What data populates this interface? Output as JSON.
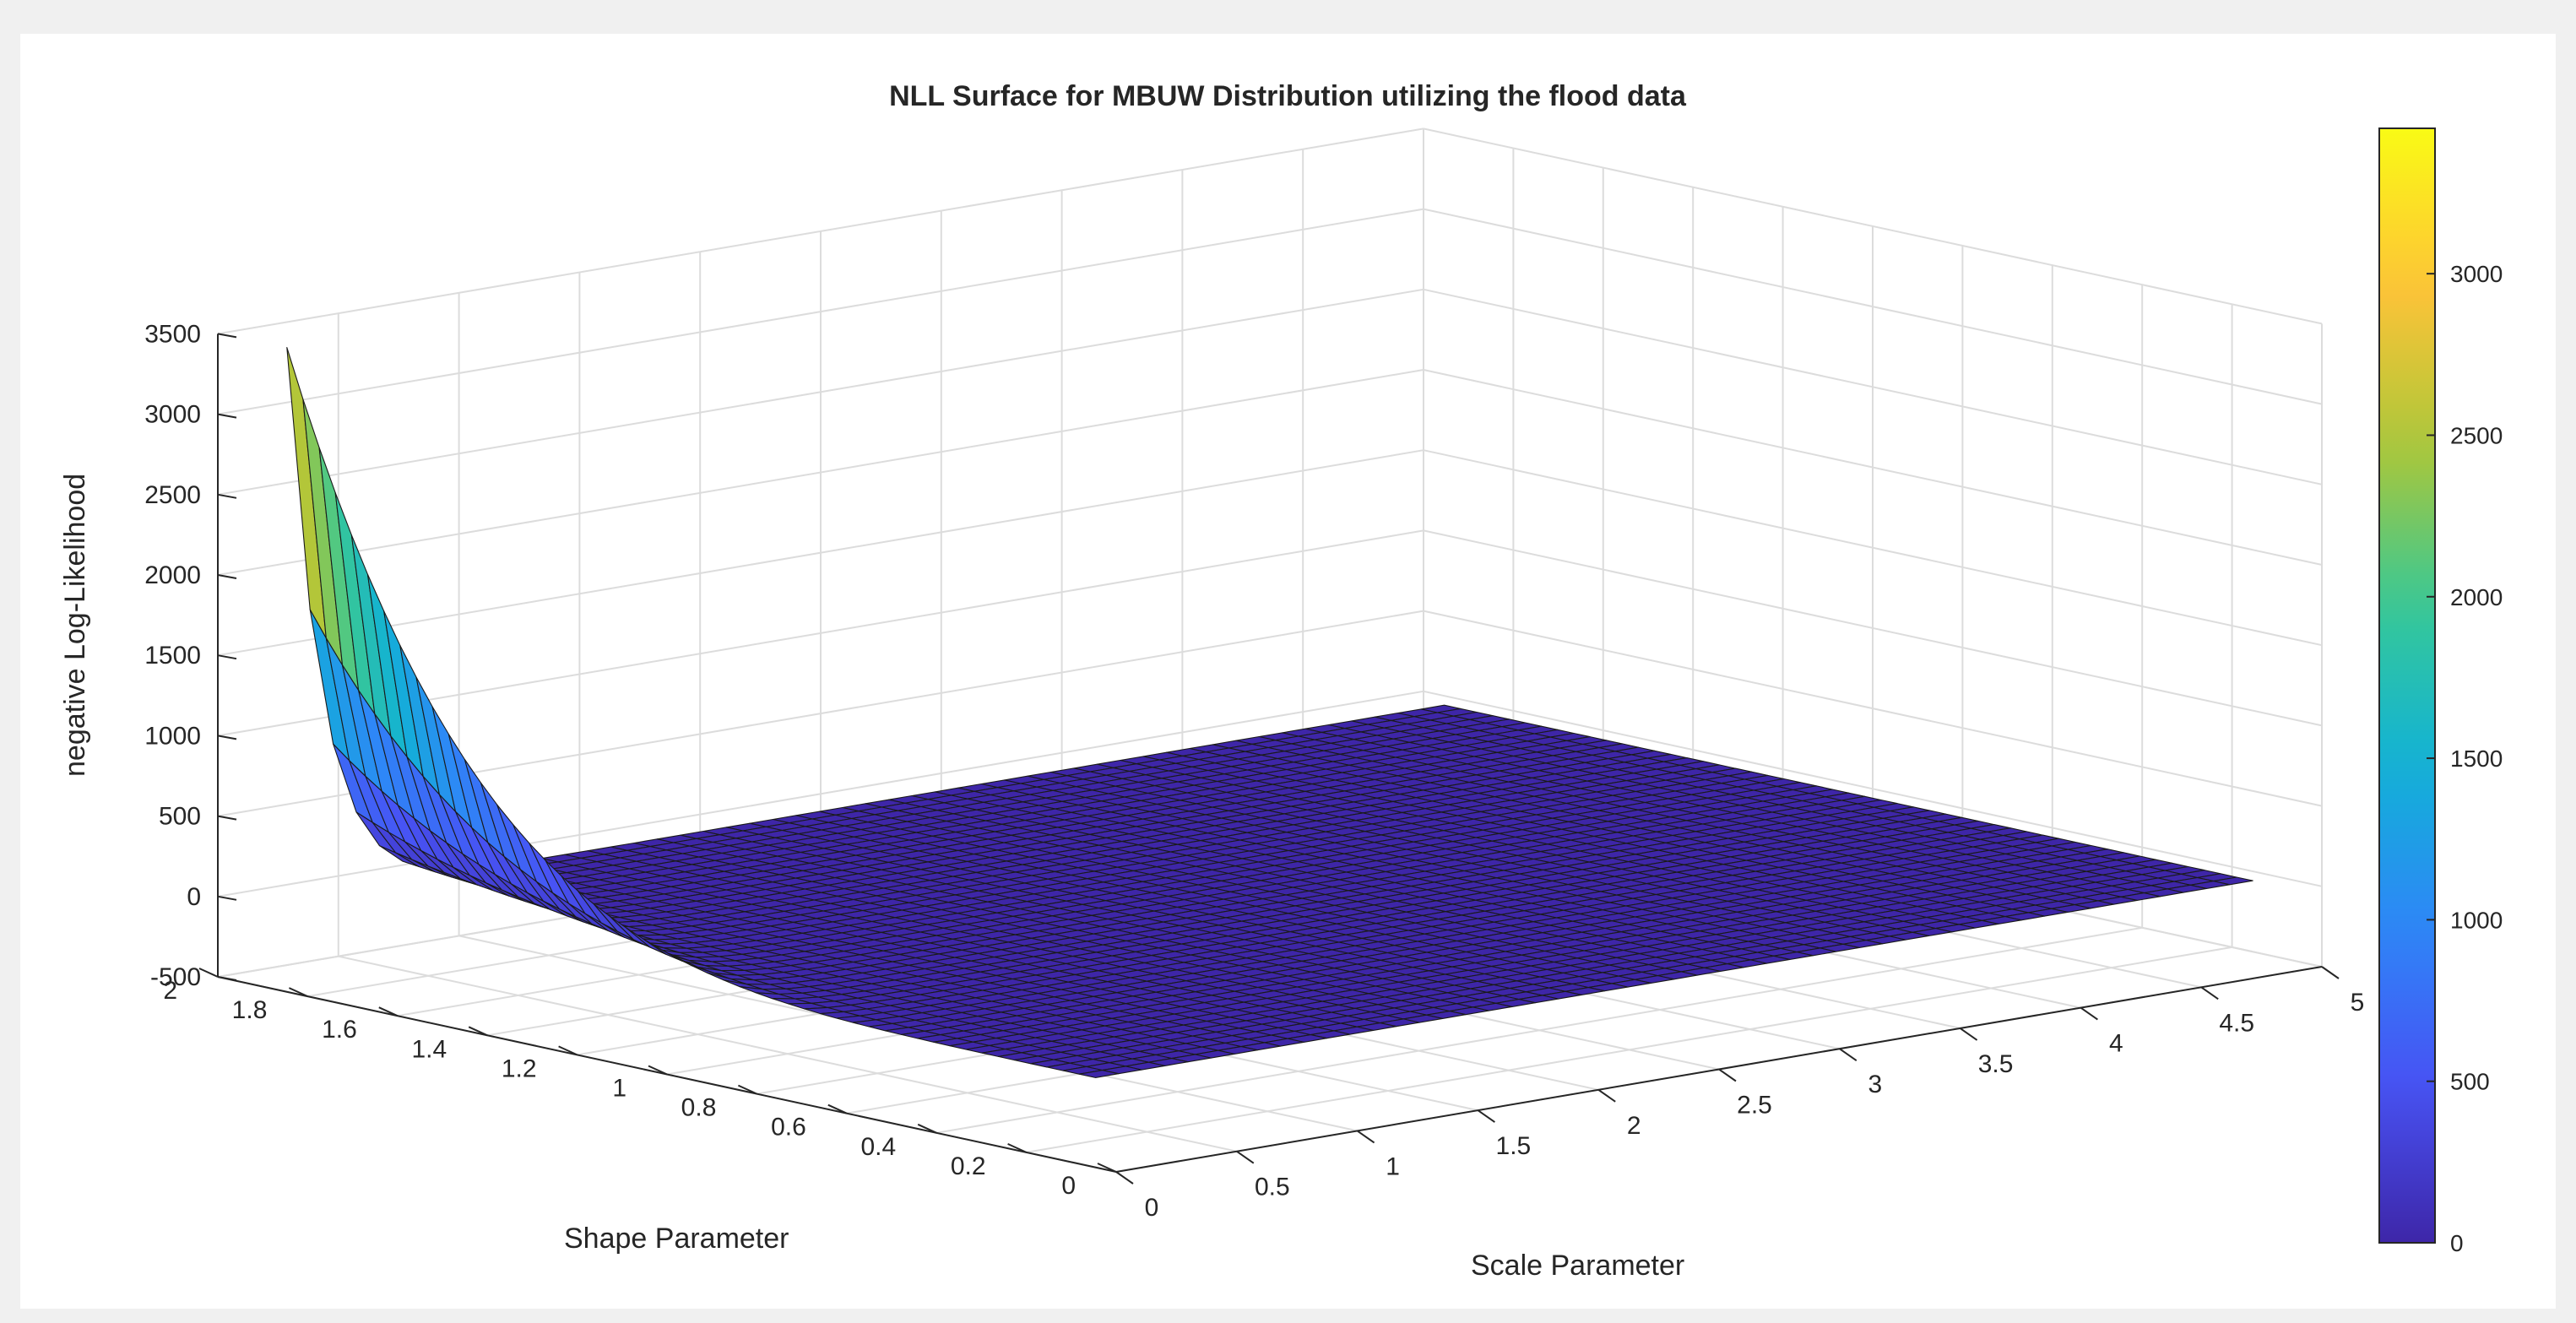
{
  "chart_data": {
    "type": "surface",
    "title": "NLL Surface for MBUW Distribution utilizing the flood data",
    "xlabel": "Scale Parameter",
    "ylabel": "Shape Parameter",
    "zlabel": "negative Log-Likelihood",
    "xlim": [
      0,
      5
    ],
    "ylim": [
      0,
      2
    ],
    "zlim": [
      -500,
      3500
    ],
    "xticks": [
      "0",
      "0.5",
      "1",
      "1.5",
      "2",
      "2.5",
      "3",
      "3.5",
      "4",
      "4.5",
      "5"
    ],
    "yticks": [
      "0",
      "0.2",
      "0.4",
      "0.6",
      "0.8",
      "1",
      "1.2",
      "1.4",
      "1.6",
      "1.8",
      "2"
    ],
    "zticks": [
      "-500",
      "0",
      "500",
      "1000",
      "1500",
      "2000",
      "2500",
      "3000",
      "3500"
    ],
    "surface_x_range": [
      0.1,
      4.9
    ],
    "surface_y_range": [
      0.1,
      1.9
    ],
    "grid_resolution": 50,
    "z_peak": 3450,
    "sample_points": [
      {
        "x": 0.1,
        "y": 1.9,
        "z": 3450
      },
      {
        "x": 0.1,
        "y": 1.5,
        "z": 800
      },
      {
        "x": 0.1,
        "y": 0.1,
        "z": 0
      },
      {
        "x": 0.3,
        "y": 1.9,
        "z": 2000
      },
      {
        "x": 0.6,
        "y": 1.9,
        "z": 700
      },
      {
        "x": 4.9,
        "y": 1.9,
        "z": 0
      }
    ],
    "colorbar": {
      "min": 0,
      "max": 3450,
      "ticks": [
        "0",
        "500",
        "1000",
        "1500",
        "2000",
        "2500",
        "3000"
      ],
      "colormap": "parula"
    },
    "grid": true,
    "background_color": "#f0f0f0",
    "axes_color": "#ffffff"
  }
}
